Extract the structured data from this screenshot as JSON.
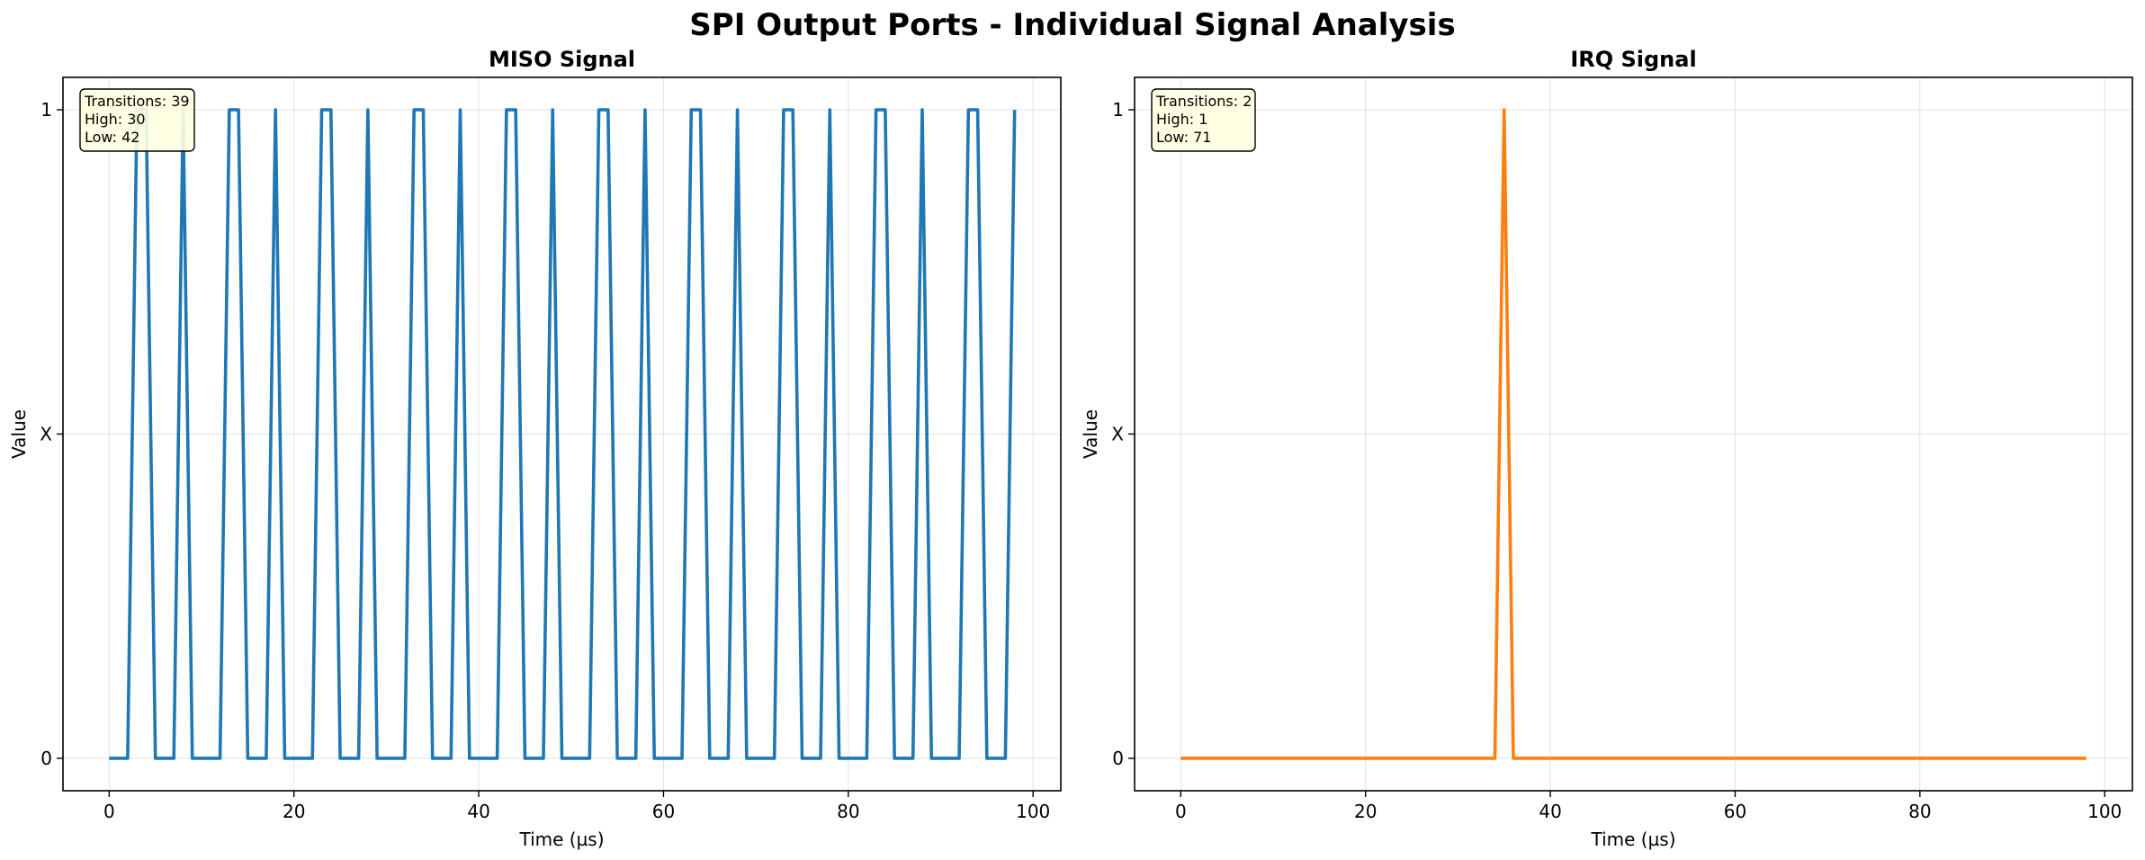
{
  "title": "SPI Output Ports - Individual Signal Analysis",
  "chart_data": [
    {
      "type": "line",
      "title": "MISO Signal",
      "xlabel": "Time (µs)",
      "ylabel": "Value",
      "xlim": [
        -5,
        103
      ],
      "ylim": [
        -0.05,
        1.05
      ],
      "xticks": [
        0,
        20,
        40,
        60,
        80,
        100
      ],
      "yticks": [
        {
          "value": 0,
          "label": "0"
        },
        {
          "value": 0.5,
          "label": "X"
        },
        {
          "value": 1,
          "label": "1"
        }
      ],
      "grid": true,
      "color": "#1f77b4",
      "stats": {
        "transitions": "Transitions: 39",
        "high": "High: 30",
        "low": "Low: 42"
      },
      "series": [
        {
          "x": [
            0,
            2,
            3,
            4,
            5,
            6,
            7,
            8,
            9,
            10,
            11,
            12,
            13,
            14,
            15,
            16,
            17,
            18,
            19,
            20,
            21,
            22,
            23,
            24,
            25,
            26,
            27,
            28,
            29,
            30,
            31,
            32,
            33,
            34,
            35,
            36,
            37,
            38,
            39,
            40,
            41,
            42,
            43,
            44,
            45,
            46,
            47,
            48,
            49,
            50,
            51,
            52,
            53,
            54,
            55,
            56,
            57,
            58,
            59,
            60,
            61,
            62,
            63,
            64,
            65,
            66,
            67,
            68,
            69,
            70,
            71,
            72,
            73,
            74,
            75,
            76,
            77,
            78,
            79,
            80,
            81,
            82,
            83,
            84,
            85,
            86,
            87,
            88,
            89,
            90,
            91,
            92,
            93,
            94,
            95,
            96,
            97,
            98
          ],
          "values": [
            0,
            0,
            1,
            1,
            0,
            0,
            0,
            1,
            0,
            0,
            0,
            0,
            1,
            1,
            0,
            0,
            0,
            1,
            0,
            0,
            0,
            0,
            1,
            1,
            0,
            0,
            0,
            1,
            0,
            0,
            0,
            0,
            1,
            1,
            0,
            0,
            0,
            1,
            0,
            0,
            0,
            0,
            1,
            1,
            0,
            0,
            0,
            1,
            0,
            0,
            0,
            0,
            1,
            1,
            0,
            0,
            0,
            1,
            0,
            0,
            0,
            0,
            1,
            1,
            0,
            0,
            0,
            1,
            0,
            0,
            0,
            0,
            1,
            1,
            0,
            0,
            0,
            1,
            0,
            0,
            0,
            0,
            1,
            1,
            0,
            0,
            0,
            1,
            0,
            0,
            0,
            0,
            1,
            1,
            0,
            0,
            0,
            1
          ]
        }
      ]
    },
    {
      "type": "line",
      "title": "IRQ Signal",
      "xlabel": "Time (µs)",
      "ylabel": "Value",
      "xlim": [
        -5,
        103
      ],
      "ylim": [
        -0.05,
        1.05
      ],
      "xticks": [
        0,
        20,
        40,
        60,
        80,
        100
      ],
      "yticks": [
        {
          "value": 0,
          "label": "0"
        },
        {
          "value": 0.5,
          "label": "X"
        },
        {
          "value": 1,
          "label": "1"
        }
      ],
      "grid": true,
      "color": "#ff7f0e",
      "stats": {
        "transitions": "Transitions: 2",
        "high": "High: 1",
        "low": "Low: 71"
      },
      "series": [
        {
          "x": [
            0,
            34,
            35,
            36,
            98
          ],
          "values": [
            0,
            0,
            1,
            0,
            0
          ]
        }
      ]
    }
  ]
}
